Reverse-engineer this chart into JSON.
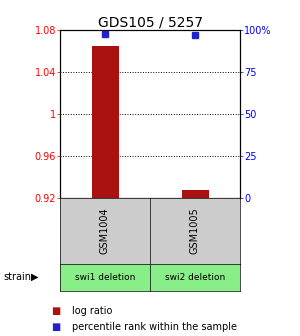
{
  "title": "GDS105 / 5257",
  "samples": [
    "GSM1004",
    "GSM1005"
  ],
  "strains": [
    "swi1 deletion",
    "swi2 deletion"
  ],
  "log_ratios": [
    1.065,
    0.928
  ],
  "log_ratio_base": 0.92,
  "percentile_ranks": [
    98,
    97
  ],
  "ylim_left": [
    0.92,
    1.08
  ],
  "ylim_right": [
    0,
    100
  ],
  "yticks_left": [
    0.92,
    0.96,
    1.0,
    1.04,
    1.08
  ],
  "ytick_labels_left": [
    "0.92",
    "0.96",
    "1",
    "1.04",
    "1.08"
  ],
  "yticks_right": [
    0,
    25,
    50,
    75,
    100
  ],
  "ytick_labels_right": [
    "0",
    "25",
    "50",
    "75",
    "100%"
  ],
  "hline_ticks": [
    0.96,
    1.0,
    1.04
  ],
  "bar_color": "#aa1111",
  "dot_color": "#2222cc",
  "bar_width": 0.3,
  "gray_box_color": "#cccccc",
  "green_box_color": "#88ee88",
  "legend_log_ratio_color": "#aa1111",
  "legend_percentile_color": "#2222cc",
  "strain_label": "strain",
  "title_fontsize": 10,
  "tick_fontsize": 7,
  "legend_fontsize": 7
}
